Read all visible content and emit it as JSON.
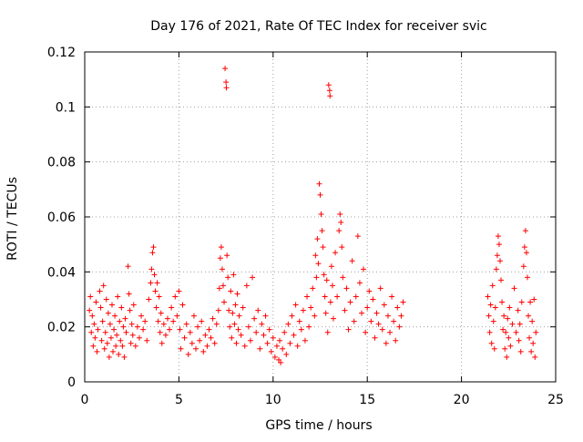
{
  "chart_data": {
    "type": "scatter",
    "title": "Day 176 of 2021, Rate Of TEC Index for receiver svic",
    "xlabel": "GPS time / hours",
    "ylabel": "ROTI / TECUs",
    "xlim": [
      0,
      25
    ],
    "ylim": [
      0,
      0.12
    ],
    "xticks": [
      "0",
      "5",
      "10",
      "15",
      "20",
      "25"
    ],
    "yticks": [
      "0",
      "0.02",
      "0.04",
      "0.06",
      "0.08",
      "0.1",
      "0.12"
    ],
    "grid": true,
    "marker": "plus",
    "color": "#ff0000",
    "series": [
      {
        "points": [
          [
            0.25,
            0.026
          ],
          [
            0.3,
            0.031
          ],
          [
            0.35,
            0.018
          ],
          [
            0.4,
            0.024
          ],
          [
            0.45,
            0.013
          ],
          [
            0.5,
            0.021
          ],
          [
            0.55,
            0.016
          ],
          [
            0.6,
            0.029
          ],
          [
            0.65,
            0.011
          ],
          [
            0.7,
            0.019
          ],
          [
            0.8,
            0.033
          ],
          [
            0.85,
            0.027
          ],
          [
            0.9,
            0.015
          ],
          [
            0.95,
            0.022
          ],
          [
            1.0,
            0.035
          ],
          [
            1.05,
            0.012
          ],
          [
            1.1,
            0.018
          ],
          [
            1.15,
            0.03
          ],
          [
            1.2,
            0.014
          ],
          [
            1.25,
            0.025
          ],
          [
            1.3,
            0.009
          ],
          [
            1.35,
            0.021
          ],
          [
            1.4,
            0.016
          ],
          [
            1.45,
            0.028
          ],
          [
            1.5,
            0.011
          ],
          [
            1.55,
            0.019
          ],
          [
            1.6,
            0.024
          ],
          [
            1.65,
            0.013
          ],
          [
            1.7,
            0.017
          ],
          [
            1.75,
            0.031
          ],
          [
            1.8,
            0.01
          ],
          [
            1.85,
            0.022
          ],
          [
            1.9,
            0.015
          ],
          [
            1.95,
            0.027
          ],
          [
            2.0,
            0.013
          ],
          [
            2.05,
            0.02
          ],
          [
            2.1,
            0.009
          ],
          [
            2.15,
            0.023
          ],
          [
            2.2,
            0.018
          ],
          [
            2.3,
            0.042
          ],
          [
            2.35,
            0.032
          ],
          [
            2.4,
            0.026
          ],
          [
            2.45,
            0.014
          ],
          [
            2.5,
            0.021
          ],
          [
            2.55,
            0.017
          ],
          [
            2.6,
            0.028
          ],
          [
            2.7,
            0.013
          ],
          [
            2.8,
            0.02
          ],
          [
            2.9,
            0.016
          ],
          [
            3.0,
            0.024
          ],
          [
            3.1,
            0.019
          ],
          [
            3.2,
            0.022
          ],
          [
            3.3,
            0.015
          ],
          [
            3.4,
            0.03
          ],
          [
            3.5,
            0.036
          ],
          [
            3.55,
            0.041
          ],
          [
            3.6,
            0.047
          ],
          [
            3.65,
            0.049
          ],
          [
            3.7,
            0.039
          ],
          [
            3.75,
            0.033
          ],
          [
            3.8,
            0.027
          ],
          [
            3.85,
            0.036
          ],
          [
            3.9,
            0.022
          ],
          [
            3.95,
            0.031
          ],
          [
            4.0,
            0.018
          ],
          [
            4.05,
            0.025
          ],
          [
            4.1,
            0.014
          ],
          [
            4.2,
            0.021
          ],
          [
            4.3,
            0.017
          ],
          [
            4.4,
            0.023
          ],
          [
            4.5,
            0.019
          ],
          [
            4.6,
            0.027
          ],
          [
            4.7,
            0.022
          ],
          [
            4.8,
            0.031
          ],
          [
            4.9,
            0.024
          ],
          [
            5.0,
            0.033
          ],
          [
            5.05,
            0.019
          ],
          [
            5.1,
            0.012
          ],
          [
            5.2,
            0.028
          ],
          [
            5.3,
            0.016
          ],
          [
            5.4,
            0.021
          ],
          [
            5.5,
            0.01
          ],
          [
            5.6,
            0.018
          ],
          [
            5.7,
            0.014
          ],
          [
            5.8,
            0.024
          ],
          [
            5.9,
            0.012
          ],
          [
            6.0,
            0.02
          ],
          [
            6.1,
            0.015
          ],
          [
            6.2,
            0.022
          ],
          [
            6.3,
            0.011
          ],
          [
            6.4,
            0.017
          ],
          [
            6.5,
            0.013
          ],
          [
            6.6,
            0.019
          ],
          [
            6.7,
            0.016
          ],
          [
            6.8,
            0.023
          ],
          [
            6.9,
            0.014
          ],
          [
            7.0,
            0.021
          ],
          [
            7.1,
            0.026
          ],
          [
            7.15,
            0.034
          ],
          [
            7.2,
            0.045
          ],
          [
            7.25,
            0.049
          ],
          [
            7.3,
            0.041
          ],
          [
            7.35,
            0.035
          ],
          [
            7.4,
            0.029
          ],
          [
            7.45,
            0.114
          ],
          [
            7.5,
            0.109
          ],
          [
            7.52,
            0.107
          ],
          [
            7.55,
            0.046
          ],
          [
            7.6,
            0.038
          ],
          [
            7.65,
            0.026
          ],
          [
            7.7,
            0.02
          ],
          [
            7.75,
            0.033
          ],
          [
            7.8,
            0.016
          ],
          [
            7.85,
            0.025
          ],
          [
            7.9,
            0.039
          ],
          [
            7.95,
            0.021
          ],
          [
            8.0,
            0.028
          ],
          [
            8.05,
            0.014
          ],
          [
            8.1,
            0.032
          ],
          [
            8.15,
            0.019
          ],
          [
            8.2,
            0.024
          ],
          [
            8.3,
            0.017
          ],
          [
            8.4,
            0.027
          ],
          [
            8.5,
            0.013
          ],
          [
            8.6,
            0.035
          ],
          [
            8.7,
            0.02
          ],
          [
            8.8,
            0.015
          ],
          [
            8.9,
            0.038
          ],
          [
            9.0,
            0.023
          ],
          [
            9.1,
            0.018
          ],
          [
            9.2,
            0.026
          ],
          [
            9.3,
            0.012
          ],
          [
            9.4,
            0.021
          ],
          [
            9.5,
            0.017
          ],
          [
            9.6,
            0.024
          ],
          [
            9.7,
            0.014
          ],
          [
            9.8,
            0.019
          ],
          [
            9.9,
            0.011
          ],
          [
            10.0,
            0.016
          ],
          [
            10.1,
            0.009
          ],
          [
            10.2,
            0.013
          ],
          [
            10.3,
            0.008
          ],
          [
            10.35,
            0.015
          ],
          [
            10.4,
            0.007
          ],
          [
            10.5,
            0.012
          ],
          [
            10.6,
            0.018
          ],
          [
            10.7,
            0.01
          ],
          [
            10.8,
            0.021
          ],
          [
            10.9,
            0.014
          ],
          [
            11.0,
            0.024
          ],
          [
            11.1,
            0.017
          ],
          [
            11.2,
            0.028
          ],
          [
            11.3,
            0.013
          ],
          [
            11.4,
            0.022
          ],
          [
            11.5,
            0.019
          ],
          [
            11.6,
            0.026
          ],
          [
            11.7,
            0.015
          ],
          [
            11.8,
            0.031
          ],
          [
            11.9,
            0.02
          ],
          [
            12.0,
            0.027
          ],
          [
            12.1,
            0.034
          ],
          [
            12.2,
            0.024
          ],
          [
            12.25,
            0.046
          ],
          [
            12.3,
            0.038
          ],
          [
            12.35,
            0.052
          ],
          [
            12.4,
            0.043
          ],
          [
            12.45,
            0.072
          ],
          [
            12.5,
            0.068
          ],
          [
            12.55,
            0.061
          ],
          [
            12.6,
            0.055
          ],
          [
            12.65,
            0.049
          ],
          [
            12.7,
            0.039
          ],
          [
            12.75,
            0.031
          ],
          [
            12.8,
            0.025
          ],
          [
            12.85,
            0.037
          ],
          [
            12.9,
            0.018
          ],
          [
            12.95,
            0.108
          ],
          [
            13.0,
            0.106
          ],
          [
            13.02,
            0.104
          ],
          [
            13.05,
            0.029
          ],
          [
            13.1,
            0.042
          ],
          [
            13.15,
            0.035
          ],
          [
            13.2,
            0.023
          ],
          [
            13.3,
            0.047
          ],
          [
            13.4,
            0.031
          ],
          [
            13.5,
            0.055
          ],
          [
            13.55,
            0.061
          ],
          [
            13.6,
            0.058
          ],
          [
            13.65,
            0.049
          ],
          [
            13.7,
            0.038
          ],
          [
            13.8,
            0.026
          ],
          [
            13.9,
            0.034
          ],
          [
            14.0,
            0.019
          ],
          [
            14.1,
            0.029
          ],
          [
            14.2,
            0.044
          ],
          [
            14.3,
            0.022
          ],
          [
            14.4,
            0.031
          ],
          [
            14.5,
            0.053
          ],
          [
            14.6,
            0.036
          ],
          [
            14.7,
            0.025
          ],
          [
            14.8,
            0.041
          ],
          [
            14.9,
            0.018
          ],
          [
            15.0,
            0.027
          ],
          [
            15.1,
            0.033
          ],
          [
            15.2,
            0.022
          ],
          [
            15.3,
            0.03
          ],
          [
            15.4,
            0.016
          ],
          [
            15.5,
            0.025
          ],
          [
            15.6,
            0.021
          ],
          [
            15.7,
            0.034
          ],
          [
            15.8,
            0.019
          ],
          [
            15.9,
            0.028
          ],
          [
            16.0,
            0.014
          ],
          [
            16.1,
            0.024
          ],
          [
            16.2,
            0.018
          ],
          [
            16.3,
            0.031
          ],
          [
            16.4,
            0.022
          ],
          [
            16.5,
            0.015
          ],
          [
            16.6,
            0.027
          ],
          [
            16.7,
            0.02
          ],
          [
            16.8,
            0.024
          ],
          [
            16.9,
            0.029
          ],
          [
            21.4,
            0.031
          ],
          [
            21.45,
            0.024
          ],
          [
            21.5,
            0.018
          ],
          [
            21.55,
            0.028
          ],
          [
            21.6,
            0.014
          ],
          [
            21.65,
            0.035
          ],
          [
            21.7,
            0.022
          ],
          [
            21.75,
            0.012
          ],
          [
            21.8,
            0.027
          ],
          [
            21.85,
            0.041
          ],
          [
            21.9,
            0.046
          ],
          [
            21.95,
            0.053
          ],
          [
            22.0,
            0.05
          ],
          [
            22.05,
            0.044
          ],
          [
            22.1,
            0.037
          ],
          [
            22.15,
            0.029
          ],
          [
            22.2,
            0.019
          ],
          [
            22.25,
            0.024
          ],
          [
            22.3,
            0.012
          ],
          [
            22.35,
            0.018
          ],
          [
            22.4,
            0.009
          ],
          [
            22.45,
            0.023
          ],
          [
            22.5,
            0.016
          ],
          [
            22.55,
            0.027
          ],
          [
            22.6,
            0.013
          ],
          [
            22.7,
            0.021
          ],
          [
            22.8,
            0.034
          ],
          [
            22.9,
            0.018
          ],
          [
            23.0,
            0.026
          ],
          [
            23.05,
            0.015
          ],
          [
            23.1,
            0.021
          ],
          [
            23.15,
            0.011
          ],
          [
            23.2,
            0.029
          ],
          [
            23.3,
            0.042
          ],
          [
            23.35,
            0.049
          ],
          [
            23.4,
            0.055
          ],
          [
            23.45,
            0.047
          ],
          [
            23.5,
            0.038
          ],
          [
            23.55,
            0.024
          ],
          [
            23.6,
            0.016
          ],
          [
            23.65,
            0.029
          ],
          [
            23.7,
            0.011
          ],
          [
            23.75,
            0.022
          ],
          [
            23.8,
            0.014
          ],
          [
            23.85,
            0.03
          ],
          [
            23.9,
            0.009
          ],
          [
            23.95,
            0.018
          ]
        ]
      }
    ]
  }
}
